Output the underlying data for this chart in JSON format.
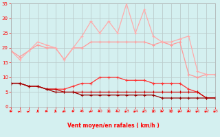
{
  "x": [
    0,
    1,
    2,
    3,
    4,
    5,
    6,
    7,
    8,
    9,
    10,
    11,
    12,
    13,
    14,
    15,
    16,
    17,
    18,
    19,
    20,
    21,
    22,
    23
  ],
  "line_rafales": [
    19,
    16,
    19,
    22,
    21,
    20,
    16,
    20,
    24,
    29,
    25,
    29,
    25,
    35,
    25,
    33,
    24,
    22,
    22,
    23,
    24,
    12,
    11,
    11
  ],
  "line_moyen": [
    19,
    17,
    19,
    21,
    20,
    20,
    16,
    20,
    20,
    22,
    22,
    22,
    22,
    22,
    22,
    22,
    21,
    22,
    21,
    22,
    11,
    10,
    11,
    11
  ],
  "line_mid1": [
    8,
    8,
    7,
    7,
    6,
    6,
    6,
    7,
    8,
    8,
    10,
    10,
    10,
    9,
    9,
    9,
    8,
    8,
    8,
    8,
    6,
    5,
    3,
    3
  ],
  "line_mid2": [
    8,
    8,
    7,
    7,
    6,
    6,
    5,
    5,
    5,
    5,
    5,
    5,
    5,
    5,
    5,
    5,
    5,
    5,
    5,
    5,
    5,
    5,
    3,
    3
  ],
  "line_low": [
    8,
    8,
    7,
    7,
    6,
    5,
    5,
    5,
    4,
    4,
    4,
    4,
    4,
    4,
    4,
    4,
    4,
    3,
    3,
    3,
    3,
    3,
    3,
    3
  ],
  "color_rafales": "#ffaaaa",
  "color_moyen": "#ff9999",
  "color_mid1": "#ff3333",
  "color_mid2": "#cc0000",
  "color_low": "#990000",
  "bg_color": "#d4f0f0",
  "grid_color": "#bbcccc",
  "xlabel": "Vent moyen/en rafales ( km/h )",
  "xlim": [
    0,
    23
  ],
  "ylim": [
    0,
    35
  ],
  "yticks": [
    0,
    5,
    10,
    15,
    20,
    25,
    30,
    35
  ],
  "xticks": [
    0,
    1,
    2,
    3,
    4,
    5,
    6,
    7,
    8,
    9,
    10,
    11,
    12,
    13,
    14,
    15,
    16,
    17,
    18,
    19,
    20,
    21,
    22,
    23
  ],
  "arrow_angles": [
    90,
    45,
    45,
    0,
    90,
    0,
    45,
    90,
    135,
    45,
    135,
    0,
    135,
    45,
    45,
    45,
    0,
    90,
    0,
    45,
    90,
    45,
    45,
    45
  ]
}
